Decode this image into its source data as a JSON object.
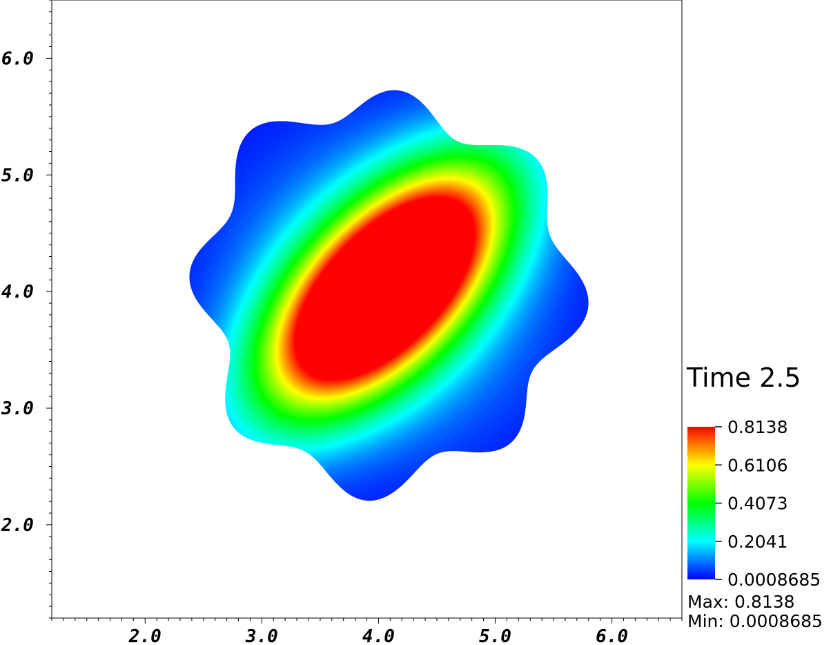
{
  "chart_data": {
    "type": "heatmap",
    "title": "",
    "xlabel": "",
    "ylabel": "",
    "xlim": [
      1.2,
      6.6
    ],
    "ylim": [
      1.2,
      6.5
    ],
    "x_ticks": [
      "2.0",
      "3.0",
      "4.0",
      "5.0",
      "6.0"
    ],
    "y_ticks": [
      "2.0",
      "3.0",
      "4.0",
      "5.0",
      "6.0"
    ],
    "grid": false,
    "colormap": [
      "#0000ff",
      "#00ffff",
      "#00ff00",
      "#ffff00",
      "#ff0000"
    ],
    "field": {
      "description_peaks": [
        {
          "x": 3.8,
          "y": 3.75,
          "value": 0.8138
        },
        {
          "x": 4.35,
          "y": 4.35,
          "value": 0.72
        }
      ],
      "min": 0.0008685,
      "max": 0.8138
    },
    "domain_boundary_center": [
      4.05,
      4.0
    ],
    "legend": {
      "title": "Time 2.5",
      "placement": "bottom-right",
      "labels": [
        "0.8138",
        "0.6106",
        "0.4073",
        "0.2041",
        "0.0008685"
      ],
      "max_label": "Max:  0.8138",
      "min_label": "Min:  0.0008685"
    }
  }
}
